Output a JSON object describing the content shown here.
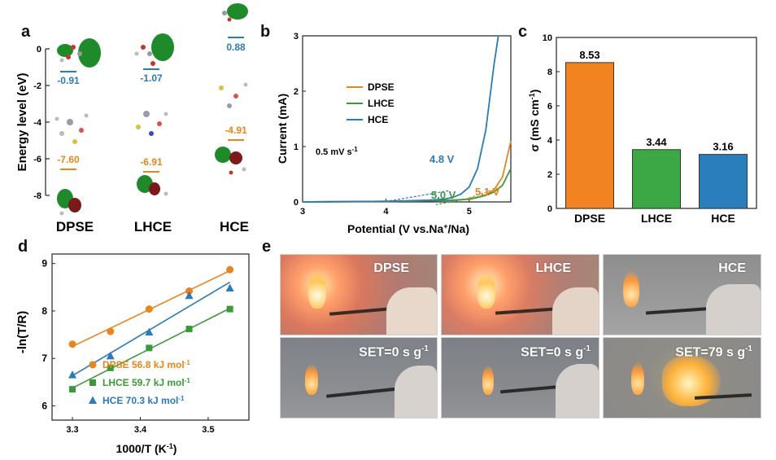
{
  "panel_letters": {
    "a": "a",
    "b": "b",
    "c": "c",
    "d": "d",
    "e": "e"
  },
  "panel_a": {
    "ylabel": "Energy level (eV)",
    "yticks": [
      "0",
      "-2",
      "-4",
      "-6",
      "-8"
    ],
    "lumo_labels": [
      "-0.91",
      "-1.07",
      "0.88"
    ],
    "homo_labels": [
      "-7.60",
      "-6.91",
      "-4.91"
    ],
    "names": [
      "DPSE",
      "LHCE",
      "HCE"
    ],
    "colors": {
      "lumo": "#2b7bb9",
      "homo": "#e8851e"
    }
  },
  "chart_data": [
    {
      "type": "line",
      "panel": "b",
      "xlabel": "Potential (V vs.Na",
      "xlabel_sup": "+",
      "xlabel_tail": "/Na)",
      "ylabel": "Current (mA)",
      "xlim": [
        3,
        5.5
      ],
      "ylim": [
        0,
        3
      ],
      "xticks": [
        "3",
        "4",
        "5"
      ],
      "yticks": [
        "0",
        "1",
        "2",
        "3"
      ],
      "legend": [
        "DPSE",
        "LHCE",
        "HCE"
      ],
      "scan_rate": "0.5 mV s",
      "scan_rate_sup": "-1",
      "onset_labels": [
        "4.8 V",
        "5.0 V",
        "5.1 V"
      ],
      "series": [
        {
          "name": "DPSE",
          "color": "#e8851e",
          "x": [
            3.0,
            4.0,
            4.5,
            4.8,
            5.0,
            5.1,
            5.2,
            5.3,
            5.4,
            5.5
          ],
          "y": [
            0.0,
            0.01,
            0.02,
            0.03,
            0.05,
            0.08,
            0.13,
            0.22,
            0.45,
            1.1
          ]
        },
        {
          "name": "LHCE",
          "color": "#3a9a3a",
          "x": [
            3.0,
            4.0,
            4.5,
            4.8,
            5.0,
            5.1,
            5.2,
            5.3,
            5.4,
            5.5
          ],
          "y": [
            0.0,
            0.01,
            0.02,
            0.03,
            0.05,
            0.08,
            0.12,
            0.18,
            0.3,
            0.6
          ]
        },
        {
          "name": "HCE",
          "color": "#2b7bb9",
          "x": [
            3.0,
            4.0,
            4.5,
            4.7,
            4.8,
            4.9,
            5.0,
            5.1,
            5.2,
            5.3,
            5.35
          ],
          "y": [
            0.0,
            0.01,
            0.03,
            0.05,
            0.08,
            0.14,
            0.27,
            0.6,
            1.3,
            2.5,
            3.0
          ]
        }
      ]
    },
    {
      "type": "bar",
      "panel": "c",
      "ylabel": "σ (mS cm",
      "ylabel_sup": "-1",
      "ylabel_tail": ")",
      "categories": [
        "DPSE",
        "LHCE",
        "HCE"
      ],
      "values": [
        8.53,
        3.44,
        3.16
      ],
      "value_labels": [
        "8.53",
        "3.44",
        "3.16"
      ],
      "colors": [
        "#f28321",
        "#3ba745",
        "#2a7ebb"
      ],
      "ylim": [
        0,
        10
      ],
      "yticks": [
        "0",
        "2",
        "4",
        "6",
        "8",
        "10"
      ]
    },
    {
      "type": "scatter",
      "panel": "d",
      "xlabel": "1000/T (K",
      "xlabel_sup": "-1",
      "xlabel_tail": ")",
      "ylabel": "-ln(T/R)",
      "xlim": [
        3.27,
        3.56
      ],
      "ylim": [
        5.7,
        9.2
      ],
      "xticks": [
        "3.3",
        "3.4",
        "3.5"
      ],
      "xtick_values": [
        3.3,
        3.4,
        3.5
      ],
      "yticks": [
        "6",
        "7",
        "8",
        "9"
      ],
      "ytick_values": [
        6,
        7,
        8,
        9
      ],
      "series": [
        {
          "name": "DPSE",
          "label": "DPSE  56.8 kJ mol",
          "label_sup": "-1",
          "color": "#e8851e",
          "marker": "circle",
          "x": [
            3.3,
            3.356,
            3.413,
            3.472,
            3.532
          ],
          "y": [
            7.3,
            7.57,
            8.04,
            8.42,
            8.87
          ]
        },
        {
          "name": "LHCE",
          "label": "LHCE  59.7 kJ mol",
          "label_sup": "-1",
          "color": "#3a9a3a",
          "marker": "square",
          "x": [
            3.3,
            3.356,
            3.413,
            3.472,
            3.532
          ],
          "y": [
            6.35,
            6.8,
            7.22,
            7.62,
            8.04
          ]
        },
        {
          "name": "HCE",
          "label": "HCE  70.3 kJ mol",
          "label_sup": "-1",
          "color": "#2b7bb9",
          "marker": "triangle",
          "x": [
            3.3,
            3.356,
            3.413,
            3.472,
            3.532
          ],
          "y": [
            6.65,
            7.05,
            7.55,
            8.32,
            8.48
          ]
        }
      ]
    }
  ],
  "panel_e": {
    "top_labels": [
      "DPSE",
      "LHCE",
      "HCE"
    ],
    "bottom_labels": [
      "SET=0 s g",
      "SET=0 s g",
      "SET=79 s g"
    ],
    "bottom_sup": "-1"
  }
}
